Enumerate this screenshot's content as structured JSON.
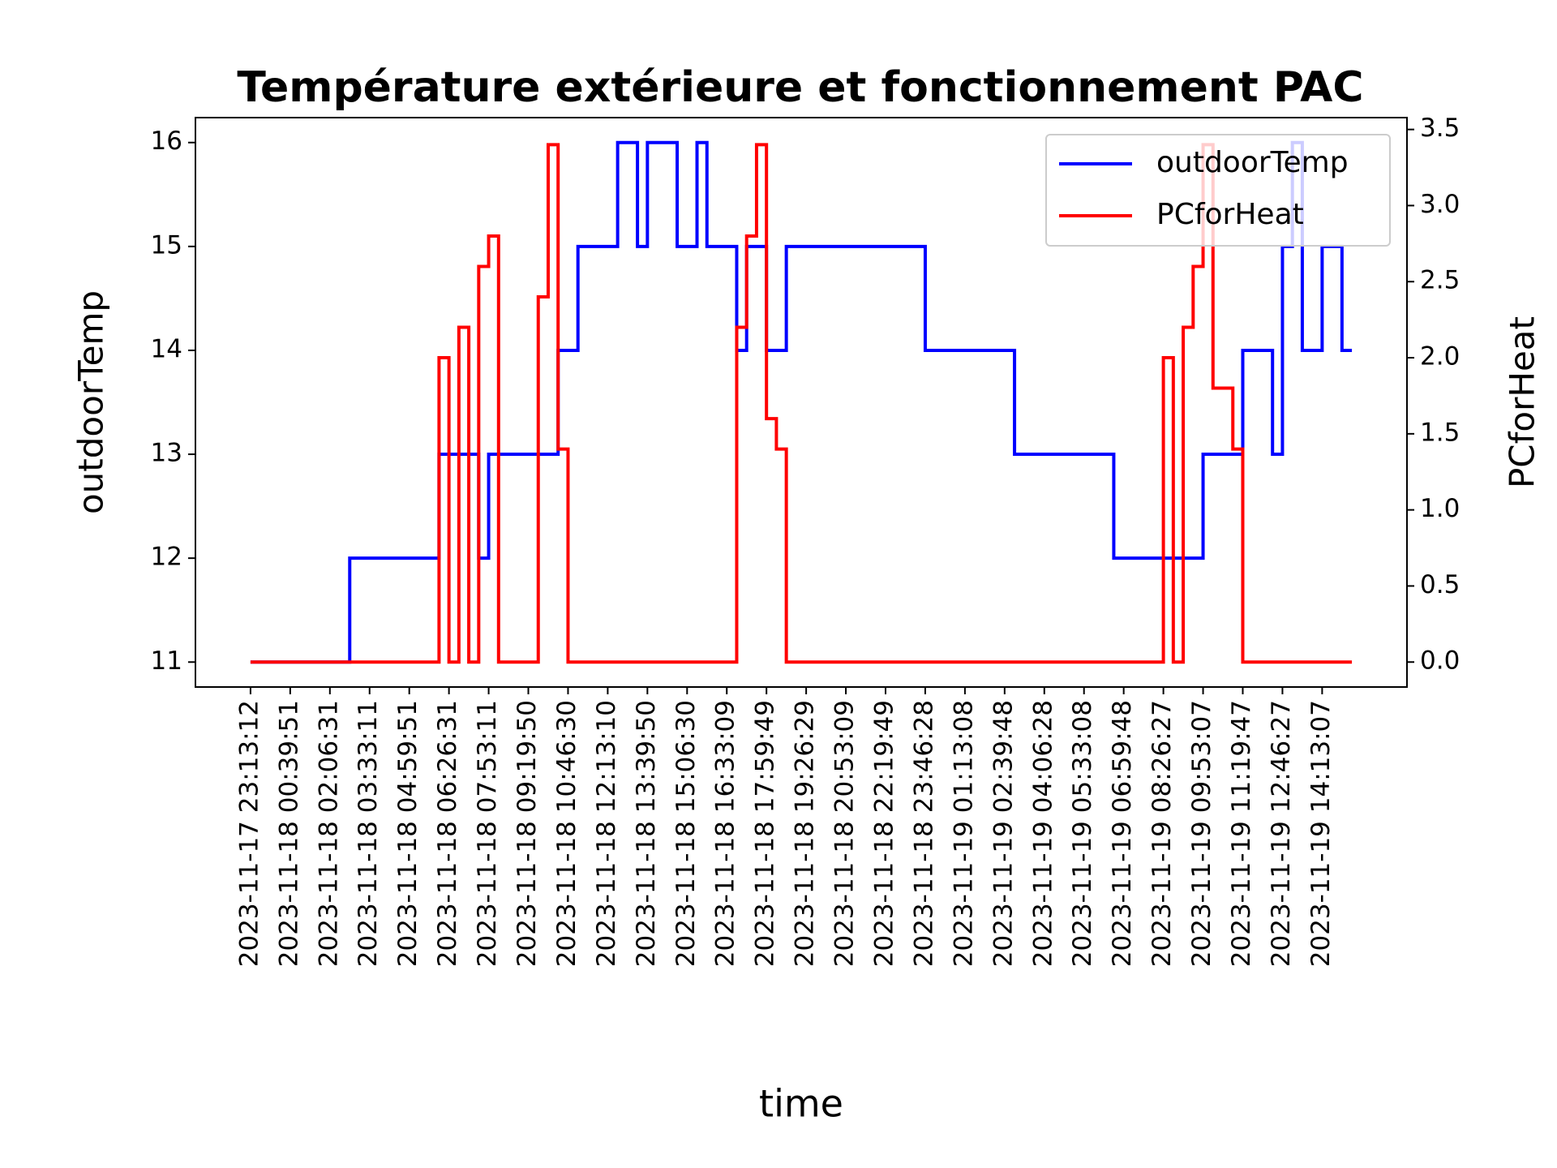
{
  "chart_data": {
    "type": "line",
    "drawstyle": "steps-post",
    "title": "Température extérieure et fonctionnement PAC",
    "title_color": "#8b0000",
    "xlabel": "time",
    "ylabel": "outdoorTemp",
    "y2label": "PCforHeat",
    "categories": [
      "2023-11-17 23:13:12",
      null,
      null,
      null,
      "2023-11-18 00:39:51",
      null,
      null,
      null,
      "2023-11-18 02:06:31",
      null,
      null,
      null,
      "2023-11-18 03:33:11",
      null,
      null,
      null,
      "2023-11-18 04:59:51",
      null,
      null,
      null,
      "2023-11-18 06:26:31",
      null,
      null,
      null,
      "2023-11-18 07:53:11",
      null,
      null,
      null,
      "2023-11-18 09:19:50",
      null,
      null,
      null,
      "2023-11-18 10:46:30",
      null,
      null,
      null,
      "2023-11-18 12:13:10",
      null,
      null,
      null,
      "2023-11-18 13:39:50",
      null,
      null,
      null,
      "2023-11-18 15:06:30",
      null,
      null,
      null,
      "2023-11-18 16:33:09",
      null,
      null,
      null,
      "2023-11-18 17:59:49",
      null,
      null,
      null,
      "2023-11-18 19:26:29",
      null,
      null,
      null,
      "2023-11-18 20:53:09",
      null,
      null,
      null,
      "2023-11-18 22:19:49",
      null,
      null,
      null,
      "2023-11-18 23:46:28",
      null,
      null,
      null,
      "2023-11-19 01:13:08",
      null,
      null,
      null,
      "2023-11-19 02:39:48",
      null,
      null,
      null,
      "2023-11-19 04:06:28",
      null,
      null,
      null,
      "2023-11-19 05:33:08",
      null,
      null,
      null,
      "2023-11-19 06:59:48",
      null,
      null,
      null,
      "2023-11-19 08:26:27",
      null,
      null,
      null,
      "2023-11-19 09:53:07",
      null,
      null,
      null,
      "2023-11-19 11:19:47",
      null,
      null,
      null,
      "2023-11-19 12:46:27",
      null,
      null,
      null,
      "2023-11-19 14:13:07",
      null,
      null,
      null
    ],
    "series": [
      {
        "name": "outdoorTemp",
        "color": "#0000ff",
        "axis": "y",
        "values": [
          11,
          11,
          11,
          11,
          11,
          11,
          11,
          11,
          11,
          11,
          12,
          12,
          12,
          12,
          12,
          12,
          12,
          12,
          12,
          13,
          13,
          13,
          13,
          12,
          13,
          13,
          13,
          13,
          13,
          13,
          13,
          14,
          14,
          15,
          15,
          15,
          15,
          16,
          16,
          15,
          16,
          16,
          16,
          15,
          15,
          16,
          15,
          15,
          15,
          14,
          15,
          15,
          14,
          14,
          15,
          15,
          15,
          15,
          15,
          15,
          15,
          15,
          15,
          15,
          15,
          15,
          15,
          15,
          14,
          14,
          14,
          14,
          14,
          14,
          14,
          14,
          14,
          13,
          13,
          13,
          13,
          13,
          13,
          13,
          13,
          13,
          13,
          12,
          12,
          12,
          12,
          12,
          12,
          12,
          12,
          12,
          13,
          13,
          13,
          13,
          14,
          14,
          14,
          13,
          15,
          16,
          14,
          14,
          15,
          15,
          14,
          14
        ]
      },
      {
        "name": "PCforHeat",
        "color": "#ff0000",
        "axis": "y2",
        "values": [
          0,
          0,
          0,
          0,
          0,
          0,
          0,
          0,
          0,
          0,
          0,
          0,
          0,
          0,
          0,
          0,
          0,
          0,
          0,
          2.0,
          0,
          2.2,
          0,
          2.6,
          2.8,
          0,
          0,
          0,
          0,
          2.4,
          3.4,
          1.4,
          0,
          0,
          0,
          0,
          0,
          0,
          0,
          0,
          0,
          0,
          0,
          0,
          0,
          0,
          0,
          0,
          0,
          2.2,
          2.8,
          3.4,
          1.6,
          1.4,
          0,
          0,
          0,
          0,
          0,
          0,
          0,
          0,
          0,
          0,
          0,
          0,
          0,
          0,
          0,
          0,
          0,
          0,
          0,
          0,
          0,
          0,
          0,
          0,
          0,
          0,
          0,
          0,
          0,
          0,
          0,
          0,
          0,
          0,
          0,
          0,
          0,
          0,
          2.0,
          0,
          2.2,
          2.6,
          3.4,
          1.8,
          1.8,
          1.4,
          0,
          0,
          0,
          0,
          0,
          0,
          0,
          0,
          0,
          0,
          0,
          0
        ]
      }
    ],
    "ylim": [
      10.76,
      16.24
    ],
    "yticks": [
      11,
      12,
      13,
      14,
      15,
      16
    ],
    "y2lim": [
      -0.164,
      3.578
    ],
    "y2ticks": [
      {
        "value": 0,
        "label": "0.0"
      },
      {
        "value": 0.5,
        "label": "0.5"
      },
      {
        "value": 1,
        "label": "1.0"
      },
      {
        "value": 1.5,
        "label": "1.5"
      },
      {
        "value": 2,
        "label": "2.0"
      },
      {
        "value": 2.5,
        "label": "2.5"
      },
      {
        "value": 3,
        "label": "3.0"
      },
      {
        "value": 3.5,
        "label": "3.5"
      }
    ],
    "legend": "upper right",
    "grid": false
  }
}
